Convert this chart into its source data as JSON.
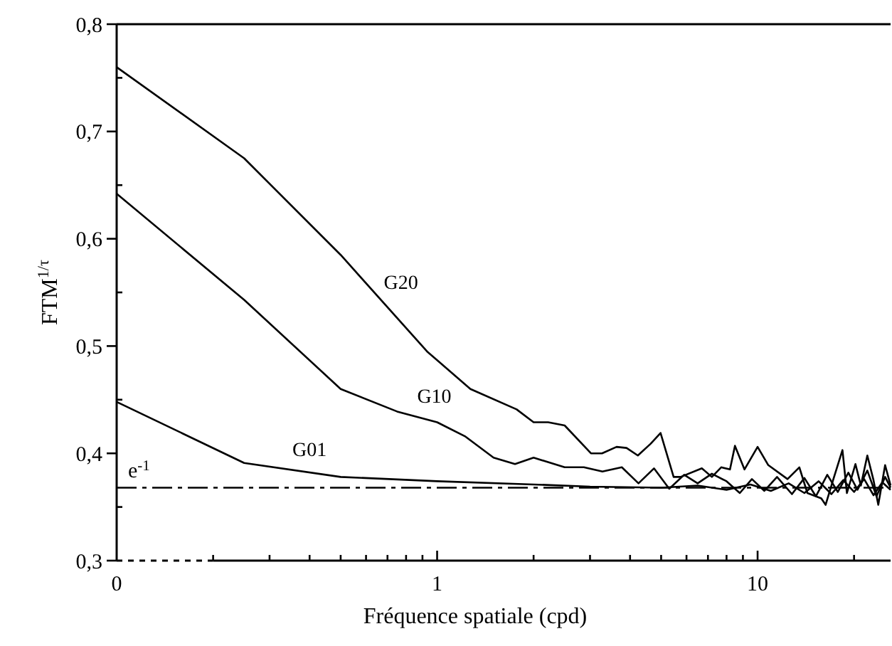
{
  "chart_data": {
    "type": "line",
    "xlabel": "Fréquence spatiale (cpd)",
    "ylabel": "FTM$^{1/τ}$",
    "log": "x",
    "xlim": [
      0.1,
      26
    ],
    "ylim": [
      0.3,
      0.8
    ],
    "xticks": [
      {
        "value": 0.1,
        "label": "0"
      },
      {
        "value": 0.2,
        "label": null
      },
      {
        "value": 0.3,
        "label": null
      },
      {
        "value": 0.4,
        "label": null
      },
      {
        "value": 0.5,
        "label": null
      },
      {
        "value": 0.6,
        "label": null
      },
      {
        "value": 0.7,
        "label": null
      },
      {
        "value": 0.8,
        "label": null
      },
      {
        "value": 0.9,
        "label": null
      },
      1,
      {
        "value": 2,
        "label": null
      },
      {
        "value": 3,
        "label": null
      },
      {
        "value": 4,
        "label": null
      },
      {
        "value": 5,
        "label": null
      },
      {
        "value": 6,
        "label": null
      },
      {
        "value": 7,
        "label": null
      },
      {
        "value": 8,
        "label": null
      },
      {
        "value": 9,
        "label": null
      },
      10,
      {
        "value": 20,
        "label": null
      }
    ],
    "yticks": [
      {
        "value": 0.3,
        "label": "0,3"
      },
      {
        "value": 0.35,
        "label": null
      },
      {
        "value": 0.4,
        "label": "0,4"
      },
      {
        "value": 0.45,
        "label": null
      },
      {
        "value": 0.5,
        "label": "0,5"
      },
      {
        "value": 0.55,
        "label": null
      },
      {
        "value": 0.6,
        "label": "0,6"
      },
      {
        "value": 0.65,
        "label": null
      },
      {
        "value": 0.7,
        "label": "0,7"
      },
      {
        "value": 0.75,
        "label": null
      },
      {
        "value": 0.8,
        "label": "0,8"
      }
    ],
    "grid": false,
    "marker": "none",
    "line_style": "solid",
    "ref_lines": [
      {
        "axis": "y",
        "value": 0.368,
        "label": "e$^{-1}$",
        "line_style": "dashed",
        "color": "#000000"
      }
    ],
    "series": [
      {
        "name": "G20",
        "color": "#000000",
        "x": [
          0.1,
          0.25,
          0.5,
          0.93,
          1.27,
          1.77,
          2.0,
          2.22,
          2.5,
          3.02,
          3.27,
          3.63,
          3.9,
          4.23,
          4.64,
          4.98,
          5.47,
          5.75,
          6.7,
          7.2,
          7.7,
          8.2,
          8.5,
          9.1,
          10,
          10.8,
          12.4,
          13.5,
          14.3,
          15.8,
          16.3,
          17.2,
          18.4,
          19,
          20.2,
          21,
          22,
          23,
          23.8,
          25,
          26
        ],
        "values": [
          0.76,
          0.675,
          0.585,
          0.495,
          0.46,
          0.441,
          0.429,
          0.429,
          0.426,
          0.4,
          0.4,
          0.406,
          0.405,
          0.398,
          0.409,
          0.419,
          0.378,
          0.378,
          0.386,
          0.378,
          0.387,
          0.385,
          0.407,
          0.385,
          0.406,
          0.389,
          0.376,
          0.387,
          0.363,
          0.358,
          0.352,
          0.375,
          0.403,
          0.363,
          0.39,
          0.37,
          0.398,
          0.375,
          0.352,
          0.389,
          0.37
        ]
      },
      {
        "name": "G10",
        "color": "#000000",
        "x": [
          0.1,
          0.25,
          0.5,
          0.75,
          1.0,
          1.22,
          1.5,
          1.75,
          2.0,
          2.5,
          2.87,
          3.28,
          3.77,
          4.25,
          4.75,
          5.3,
          5.9,
          6.5,
          7.2,
          8.0,
          8.8,
          9.6,
          10.5,
          11.5,
          12.8,
          14.0,
          15.2,
          16.5,
          17.8,
          19.2,
          20.5,
          22,
          23.5,
          25,
          26
        ],
        "values": [
          0.642,
          0.543,
          0.46,
          0.439,
          0.429,
          0.416,
          0.396,
          0.39,
          0.396,
          0.387,
          0.387,
          0.383,
          0.387,
          0.372,
          0.386,
          0.367,
          0.38,
          0.372,
          0.381,
          0.374,
          0.363,
          0.376,
          0.365,
          0.378,
          0.362,
          0.377,
          0.36,
          0.38,
          0.364,
          0.382,
          0.366,
          0.384,
          0.36,
          0.378,
          0.368
        ]
      },
      {
        "name": "G01",
        "color": "#000000",
        "x": [
          0.1,
          0.25,
          0.5,
          1.0,
          2.0,
          3.0,
          5.0,
          6.5,
          8.0,
          9.5,
          11.0,
          12.5,
          14.0,
          15.5,
          17.0,
          18.5,
          20.0,
          21.5,
          23.0,
          24.5,
          26
        ],
        "values": [
          0.448,
          0.391,
          0.378,
          0.374,
          0.371,
          0.369,
          0.368,
          0.37,
          0.366,
          0.371,
          0.365,
          0.372,
          0.363,
          0.374,
          0.362,
          0.375,
          0.364,
          0.376,
          0.361,
          0.373,
          0.366
        ]
      }
    ]
  }
}
